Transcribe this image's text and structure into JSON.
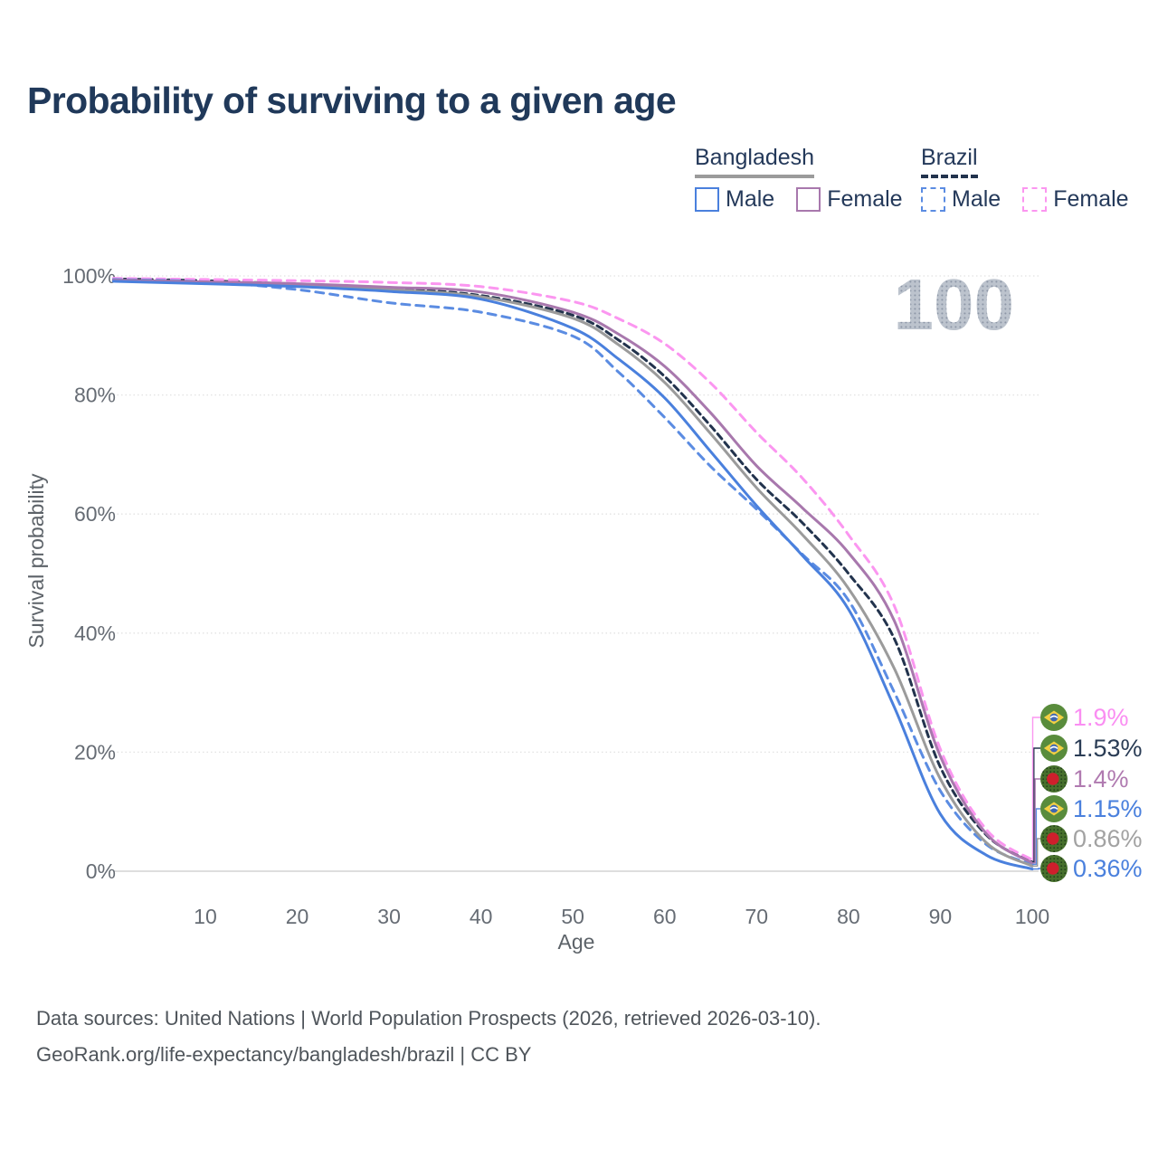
{
  "title": "Probability of surviving to a given age",
  "watermark": "100",
  "legend": {
    "groups": [
      {
        "label": "Bangladesh",
        "line_style": "solid",
        "underline_color": "#9b9b9b",
        "items": [
          {
            "label": "Male",
            "color": "#4a80dd"
          },
          {
            "label": "Female",
            "color": "#a878ad"
          }
        ]
      },
      {
        "label": "Brazil",
        "line_style": "dashed",
        "underline_color": "#22334d",
        "items": [
          {
            "label": "Male",
            "color": "#5b8ce2"
          },
          {
            "label": "Female",
            "color": "#fb96f0"
          }
        ]
      }
    ]
  },
  "axes": {
    "x_label": "Age",
    "y_label": "Survival probability",
    "x_ticks": [
      10,
      20,
      30,
      40,
      50,
      60,
      70,
      80,
      90,
      100
    ],
    "y_ticks": [
      {
        "value": 0,
        "label": "0%"
      },
      {
        "value": 20,
        "label": "20%"
      },
      {
        "value": 40,
        "label": "40%"
      },
      {
        "value": 60,
        "label": "60%"
      },
      {
        "value": 80,
        "label": "80%"
      },
      {
        "value": 100,
        "label": "100%"
      }
    ]
  },
  "chart_data": {
    "type": "line",
    "title": "Probability of surviving to a given age",
    "xlabel": "Age",
    "ylabel": "Survival probability",
    "xlim": [
      0,
      100
    ],
    "ylim": [
      0,
      100
    ],
    "grid": "horizontal-dotted",
    "legend_position": "top-right",
    "x": [
      0,
      10,
      20,
      30,
      40,
      50,
      55,
      60,
      65,
      70,
      75,
      80,
      85,
      90,
      95,
      100
    ],
    "series": [
      {
        "name": "Brazil total",
        "country": "brazil",
        "sex": "both",
        "color": "#22334d",
        "dash": "7 5",
        "width": 3,
        "values": [
          99.5,
          99.2,
          98.6,
          97.9,
          96.7,
          93.4,
          89.2,
          83.1,
          74.8,
          65.8,
          58.5,
          50.0,
          39.0,
          17.5,
          6.1,
          1.53
        ],
        "end_label": "1.53%",
        "label_color": "#2a3c55",
        "row": 1
      },
      {
        "name": "Brazil Female",
        "country": "brazil",
        "sex": "female",
        "color": "#fb96f0",
        "dash": "9 7",
        "width": 3,
        "values": [
          99.6,
          99.4,
          99.2,
          98.9,
          98.2,
          95.7,
          92.8,
          88.6,
          82.0,
          73.7,
          66.0,
          56.5,
          44.5,
          20.5,
          7.0,
          1.9
        ],
        "end_label": "1.9%",
        "label_color": "#fa8ef2",
        "row": 0
      },
      {
        "name": "Brazil Male",
        "country": "brazil",
        "sex": "male",
        "color": "#5b8ce2",
        "dash": "9 7",
        "width": 3,
        "values": [
          99.4,
          99.0,
          97.7,
          95.5,
          93.9,
          89.9,
          83.8,
          76.2,
          68.0,
          60.8,
          53.2,
          45.5,
          30.0,
          13.5,
          4.5,
          1.15
        ],
        "end_label": "1.15%",
        "label_color": "#4a80dd",
        "row": 3
      },
      {
        "name": "Bangladesh total",
        "country": "bangladesh",
        "sex": "both",
        "color": "#9b9b9b",
        "dash": null,
        "width": 3,
        "values": [
          99.2,
          98.9,
          98.5,
          97.7,
          96.5,
          92.9,
          88.4,
          82.1,
          73.5,
          64.4,
          56.5,
          47.5,
          34.0,
          15.5,
          4.8,
          0.86
        ],
        "end_label": "0.86%",
        "label_color": "#a2a2a2",
        "row": 4
      },
      {
        "name": "Bangladesh Female",
        "country": "bangladesh",
        "sex": "female",
        "color": "#a878ad",
        "dash": null,
        "width": 3,
        "values": [
          99.3,
          99.0,
          98.7,
          98.1,
          97.3,
          93.9,
          90.2,
          84.8,
          77.0,
          68.1,
          61.0,
          53.5,
          42.0,
          19.3,
          6.3,
          1.4
        ],
        "end_label": "1.4%",
        "label_color": "#b07ab0",
        "row": 2
      },
      {
        "name": "Bangladesh Male",
        "country": "bangladesh",
        "sex": "male",
        "color": "#4a80dd",
        "dash": null,
        "width": 3,
        "values": [
          99.1,
          98.7,
          98.2,
          97.4,
          96.1,
          91.2,
          86.0,
          79.5,
          70.5,
          61.4,
          53.0,
          44.0,
          27.5,
          9.6,
          2.7,
          0.36
        ],
        "end_label": "0.36%",
        "label_color": "#4a80dd",
        "row": 5
      }
    ]
  },
  "footer": {
    "line1": "Data sources: United Nations | World Population Prospects (2026, retrieved 2026-03-10).",
    "line2": "GeoRank.org/life-expectancy/bangladesh/brazil | CC BY"
  }
}
